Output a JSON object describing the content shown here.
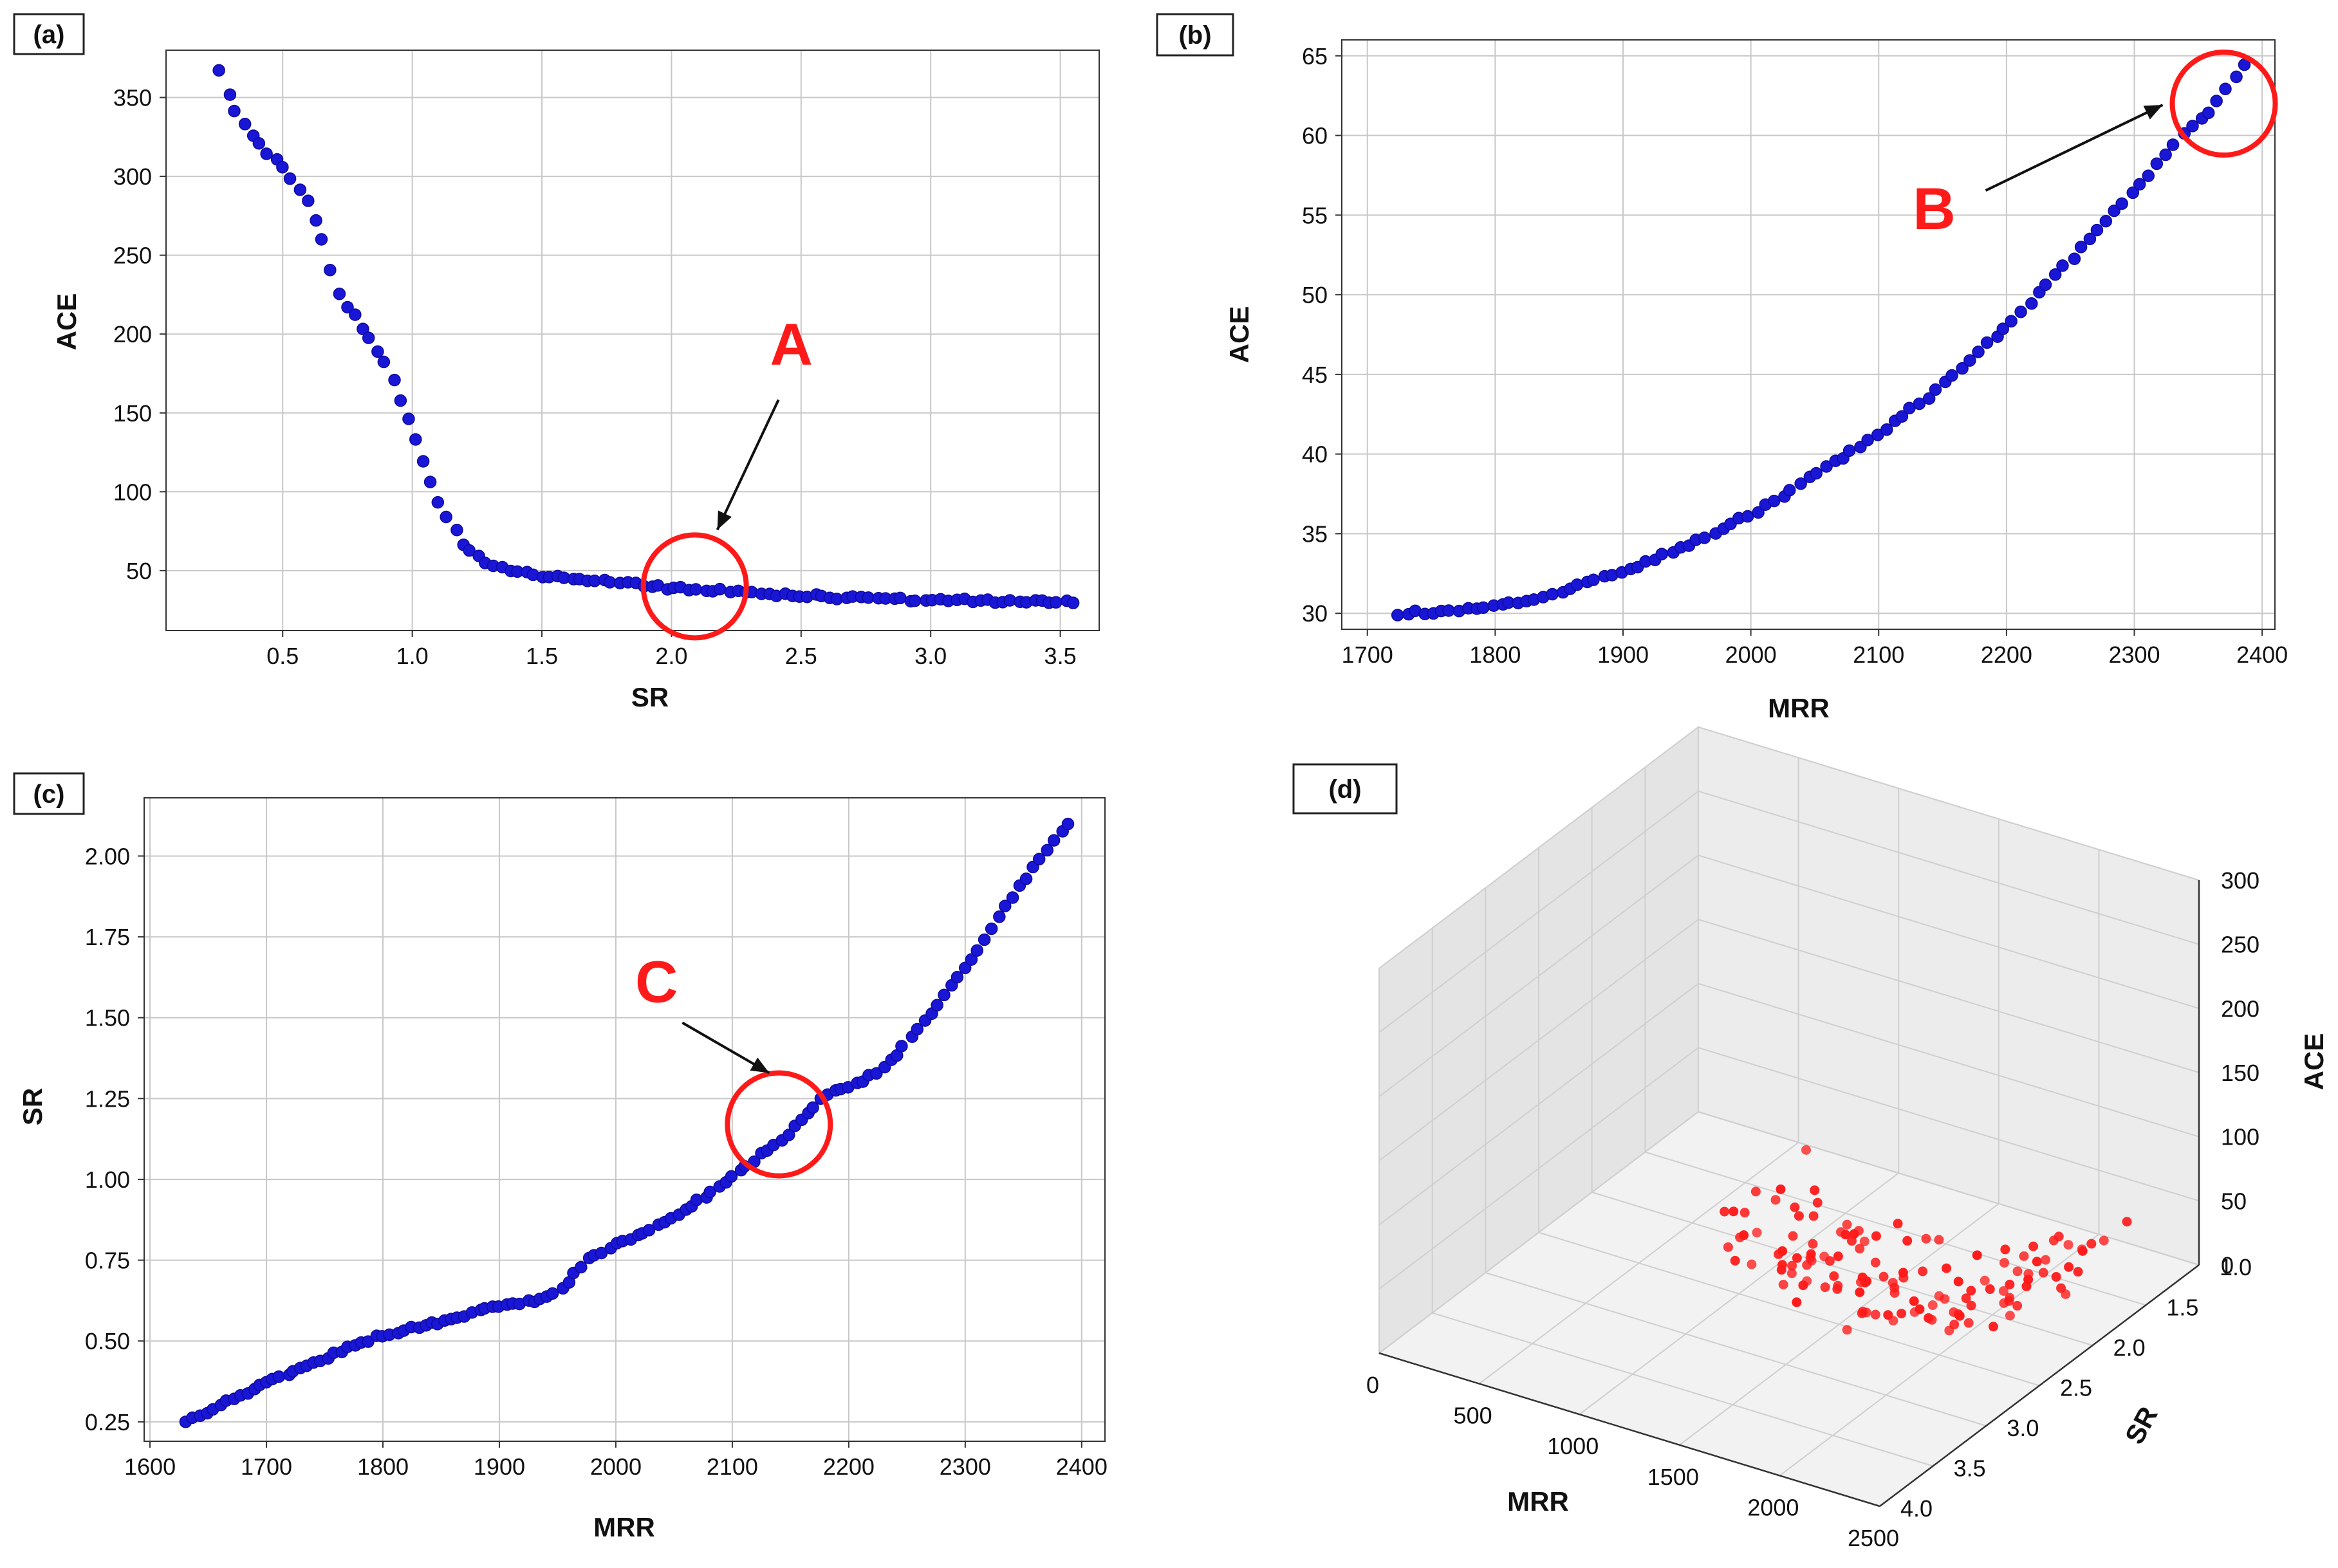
{
  "colors": {
    "blue_marker": "#1a16d6",
    "red_marker": "#ff1a1a",
    "annotation": "#ff1a1a",
    "grid": "#c8c8c8",
    "frame": "#333333"
  },
  "chart_data": [
    {
      "id": "a",
      "type": "scatter",
      "panel_label": "(a)",
      "xlabel": "SR",
      "ylabel": "ACE",
      "xlim": [
        0.05,
        3.65
      ],
      "ylim": [
        12,
        380
      ],
      "xticks": [
        0.5,
        1.0,
        1.5,
        2.0,
        2.5,
        3.0,
        3.5
      ],
      "xtick_labels": [
        "0.5",
        "1.0",
        "1.5",
        "2.0",
        "2.5",
        "3.0",
        "3.5"
      ],
      "yticks": [
        50,
        100,
        150,
        200,
        250,
        300,
        350
      ],
      "ytick_labels": [
        "50",
        "100",
        "150",
        "200",
        "250",
        "300",
        "350"
      ],
      "curve": [
        [
          0.26,
          368
        ],
        [
          0.3,
          345
        ],
        [
          0.4,
          322
        ],
        [
          0.5,
          305
        ],
        [
          0.6,
          282
        ],
        [
          0.65,
          262
        ],
        [
          0.7,
          228
        ],
        [
          0.8,
          205
        ],
        [
          0.9,
          180
        ],
        [
          1.0,
          140
        ],
        [
          1.1,
          95
        ],
        [
          1.2,
          65
        ],
        [
          1.3,
          53
        ],
        [
          1.4,
          49
        ],
        [
          1.6,
          45
        ],
        [
          1.8,
          42
        ],
        [
          2.0,
          39
        ],
        [
          2.2,
          37
        ],
        [
          2.5,
          34
        ],
        [
          2.8,
          32
        ],
        [
          3.1,
          31
        ],
        [
          3.55,
          30
        ]
      ],
      "point_count": 110,
      "annotation": {
        "label": "A",
        "x": 2.09,
        "y": 40
      }
    },
    {
      "id": "b",
      "type": "scatter",
      "panel_label": "(b)",
      "xlabel": "MRR",
      "ylabel": "ACE",
      "xlim": [
        1680,
        2410
      ],
      "ylim": [
        29,
        66
      ],
      "xticks": [
        1700,
        1800,
        1900,
        2000,
        2100,
        2200,
        2300,
        2400
      ],
      "xtick_labels": [
        "1700",
        "1800",
        "1900",
        "2000",
        "2100",
        "2200",
        "2300",
        "2400"
      ],
      "yticks": [
        30,
        35,
        40,
        45,
        50,
        55,
        60,
        65
      ],
      "ytick_labels": [
        "30",
        "35",
        "40",
        "45",
        "50",
        "55",
        "60",
        "65"
      ],
      "curve": [
        [
          1725,
          30
        ],
        [
          1760,
          30.1
        ],
        [
          1800,
          30.4
        ],
        [
          1850,
          31.3
        ],
        [
          1900,
          32.6
        ],
        [
          1950,
          34.2
        ],
        [
          2000,
          36.2
        ],
        [
          2050,
          38.7
        ],
        [
          2100,
          41.3
        ],
        [
          2150,
          44.3
        ],
        [
          2200,
          48.0
        ],
        [
          2250,
          52.2
        ],
        [
          2300,
          56.5
        ],
        [
          2340,
          60.2
        ],
        [
          2360,
          61.5
        ],
        [
          2385,
          64.5
        ]
      ],
      "point_count": 100,
      "annotation": {
        "label": "B",
        "x": 2370,
        "y": 62
      }
    },
    {
      "id": "c",
      "type": "scatter",
      "panel_label": "(c)",
      "xlabel": "MRR",
      "ylabel": "SR",
      "xlim": [
        1595,
        2420
      ],
      "ylim": [
        0.19,
        2.18
      ],
      "xticks": [
        1600,
        1700,
        1800,
        1900,
        2000,
        2100,
        2200,
        2300,
        2400
      ],
      "xtick_labels": [
        "1600",
        "1700",
        "1800",
        "1900",
        "2000",
        "2100",
        "2200",
        "2300",
        "2400"
      ],
      "yticks": [
        0.25,
        0.5,
        0.75,
        1.0,
        1.25,
        1.5,
        1.75,
        2.0
      ],
      "ytick_labels": [
        "0.25",
        "0.50",
        "0.75",
        "1.00",
        "1.25",
        "1.50",
        "1.75",
        "2.00"
      ],
      "curve": [
        [
          1630,
          0.25
        ],
        [
          1700,
          0.37
        ],
        [
          1760,
          0.46
        ],
        [
          1800,
          0.52
        ],
        [
          1850,
          0.56
        ],
        [
          1900,
          0.61
        ],
        [
          1940,
          0.63
        ],
        [
          1955,
          0.67
        ],
        [
          1975,
          0.75
        ],
        [
          2000,
          0.8
        ],
        [
          2050,
          0.88
        ],
        [
          2100,
          1.01
        ],
        [
          2150,
          1.15
        ],
        [
          2180,
          1.26
        ],
        [
          2220,
          1.32
        ],
        [
          2240,
          1.38
        ],
        [
          2300,
          1.65
        ],
        [
          2350,
          1.92
        ],
        [
          2388,
          2.1
        ]
      ],
      "point_count": 130,
      "annotation": {
        "label": "C",
        "x": 2140,
        "y": 1.17
      }
    },
    {
      "id": "d",
      "type": "scatter3d",
      "panel_label": "(d)",
      "xlabel": "MRR",
      "ylabel": "SR",
      "zlabel": "ACE",
      "xlim": [
        0,
        2500
      ],
      "ylim": [
        1.0,
        4.0
      ],
      "zlim": [
        0,
        300
      ],
      "xticks": [
        0,
        500,
        1000,
        1500,
        2000,
        2500
      ],
      "xtick_labels": [
        "0",
        "500",
        "1000",
        "1500",
        "2000",
        "2500"
      ],
      "yticks": [
        1.0,
        1.5,
        2.0,
        2.5,
        3.0,
        3.5,
        4.0
      ],
      "ytick_labels": [
        "1.0",
        "1.5",
        "2.0",
        "2.5",
        "3.0",
        "3.5",
        "4.0"
      ],
      "zticks": [
        0,
        50,
        100,
        150,
        200,
        250,
        300
      ],
      "ztick_labels": [
        "0",
        "50",
        "100",
        "150",
        "200",
        "250",
        "300"
      ],
      "point_count": 130
    }
  ]
}
